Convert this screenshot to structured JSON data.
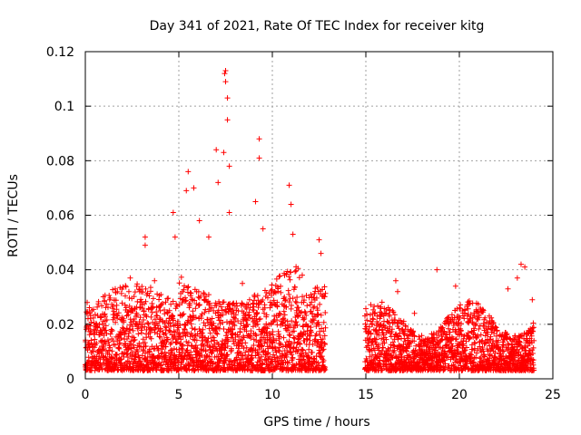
{
  "chart_data": {
    "type": "scatter",
    "title": "Day 341 of 2021, Rate Of TEC Index for receiver kitg",
    "xlabel": "GPS time / hours",
    "ylabel": "ROTI / TECUs",
    "xlim": [
      0,
      25
    ],
    "ylim": [
      0,
      0.12
    ],
    "xticks": [
      "0",
      "5",
      "10",
      "15",
      "20",
      "25"
    ],
    "yticks": [
      "0",
      "0.02",
      "0.04",
      "0.06",
      "0.08",
      "0.1",
      "0.12"
    ],
    "grid": true,
    "marker": "+",
    "series": [
      {
        "name": "ROTI",
        "color": "#ff0000",
        "data_gap_hours": [
          12.85,
          14.95
        ],
        "peaks": [
          [
            0.1,
            0.028
          ],
          [
            0.6,
            0.02
          ],
          [
            1.3,
            0.029
          ],
          [
            1.6,
            0.033
          ],
          [
            2.4,
            0.037
          ],
          [
            3.2,
            0.052
          ],
          [
            3.2,
            0.049
          ],
          [
            3.7,
            0.036
          ],
          [
            4.7,
            0.061
          ],
          [
            4.8,
            0.052
          ],
          [
            5.4,
            0.069
          ],
          [
            5.5,
            0.076
          ],
          [
            5.8,
            0.07
          ],
          [
            6.1,
            0.058
          ],
          [
            6.6,
            0.052
          ],
          [
            7.0,
            0.084
          ],
          [
            7.1,
            0.072
          ],
          [
            7.4,
            0.083
          ],
          [
            7.45,
            0.112
          ],
          [
            7.5,
            0.113
          ],
          [
            7.5,
            0.109
          ],
          [
            7.6,
            0.103
          ],
          [
            7.6,
            0.095
          ],
          [
            7.7,
            0.078
          ],
          [
            7.7,
            0.061
          ],
          [
            8.4,
            0.035
          ],
          [
            9.1,
            0.065
          ],
          [
            9.3,
            0.088
          ],
          [
            9.3,
            0.081
          ],
          [
            9.5,
            0.055
          ],
          [
            10.9,
            0.071
          ],
          [
            11.0,
            0.064
          ],
          [
            11.1,
            0.053
          ],
          [
            11.6,
            0.038
          ],
          [
            12.5,
            0.051
          ],
          [
            12.6,
            0.046
          ],
          [
            15.6,
            0.023
          ],
          [
            16.6,
            0.036
          ],
          [
            16.7,
            0.032
          ],
          [
            17.6,
            0.024
          ],
          [
            18.8,
            0.04
          ],
          [
            19.8,
            0.034
          ],
          [
            20.3,
            0.024
          ],
          [
            21.6,
            0.023
          ],
          [
            22.6,
            0.033
          ],
          [
            23.1,
            0.037
          ],
          [
            23.3,
            0.042
          ],
          [
            23.5,
            0.041
          ],
          [
            23.9,
            0.029
          ]
        ]
      }
    ]
  }
}
